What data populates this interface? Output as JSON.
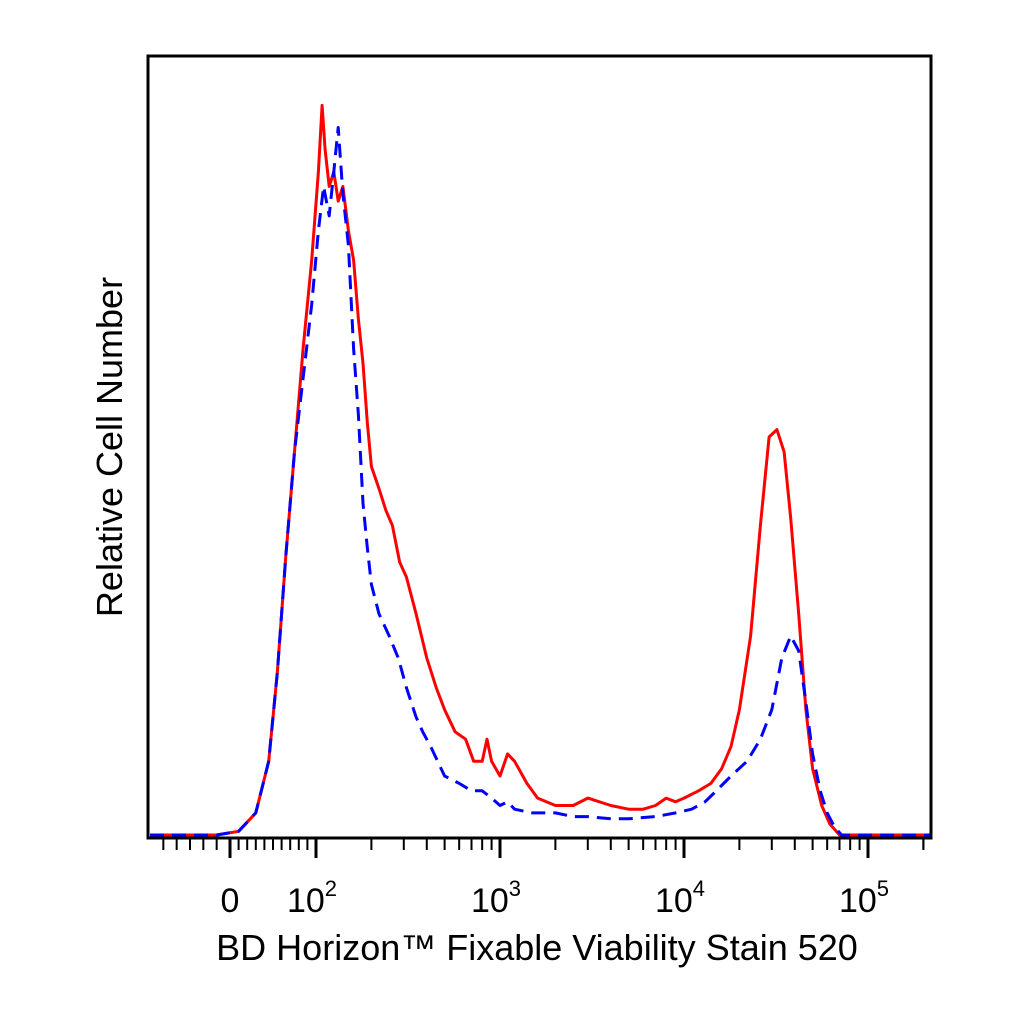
{
  "chart_data": {
    "type": "line",
    "xlabel": "BD Horizon™ Fixable Viability Stain 520",
    "ylabel": "Relative Cell Number",
    "x_scale": "biexponential",
    "xlim": [
      -60,
      250000
    ],
    "ylim": [
      0,
      1.0
    ],
    "grid": false,
    "legend": "none",
    "x_ticks": [
      {
        "value": 0,
        "base": "0",
        "exp": ""
      },
      {
        "value": 100,
        "base": "10",
        "exp": "2"
      },
      {
        "value": 1000,
        "base": "10",
        "exp": "3"
      },
      {
        "value": 10000,
        "base": "10",
        "exp": "4"
      },
      {
        "value": 100000,
        "base": "10",
        "exp": "5"
      }
    ],
    "series": [
      {
        "style": "solid",
        "color": "#ff0000",
        "points": [
          [
            -60,
            0.0
          ],
          [
            -10,
            0.0
          ],
          [
            10,
            0.005
          ],
          [
            30,
            0.03
          ],
          [
            45,
            0.1
          ],
          [
            55,
            0.22
          ],
          [
            65,
            0.38
          ],
          [
            75,
            0.52
          ],
          [
            85,
            0.66
          ],
          [
            95,
            0.78
          ],
          [
            103,
            0.9
          ],
          [
            108,
            0.99
          ],
          [
            112,
            0.93
          ],
          [
            118,
            0.88
          ],
          [
            125,
            0.9
          ],
          [
            132,
            0.86
          ],
          [
            140,
            0.88
          ],
          [
            150,
            0.82
          ],
          [
            160,
            0.78
          ],
          [
            170,
            0.7
          ],
          [
            180,
            0.64
          ],
          [
            190,
            0.56
          ],
          [
            200,
            0.5
          ],
          [
            220,
            0.47
          ],
          [
            240,
            0.44
          ],
          [
            260,
            0.42
          ],
          [
            285,
            0.37
          ],
          [
            310,
            0.35
          ],
          [
            350,
            0.3
          ],
          [
            400,
            0.24
          ],
          [
            450,
            0.2
          ],
          [
            500,
            0.17
          ],
          [
            570,
            0.14
          ],
          [
            650,
            0.13
          ],
          [
            720,
            0.1
          ],
          [
            800,
            0.1
          ],
          [
            850,
            0.13
          ],
          [
            900,
            0.1
          ],
          [
            1000,
            0.08
          ],
          [
            1100,
            0.11
          ],
          [
            1200,
            0.1
          ],
          [
            1400,
            0.07
          ],
          [
            1600,
            0.05
          ],
          [
            2000,
            0.04
          ],
          [
            2500,
            0.04
          ],
          [
            3000,
            0.05
          ],
          [
            4000,
            0.04
          ],
          [
            5000,
            0.035
          ],
          [
            6000,
            0.035
          ],
          [
            7000,
            0.04
          ],
          [
            8000,
            0.05
          ],
          [
            9000,
            0.045
          ],
          [
            10000,
            0.05
          ],
          [
            12000,
            0.06
          ],
          [
            14000,
            0.07
          ],
          [
            16000,
            0.09
          ],
          [
            18000,
            0.12
          ],
          [
            20000,
            0.17
          ],
          [
            23000,
            0.27
          ],
          [
            26000,
            0.42
          ],
          [
            29000,
            0.54
          ],
          [
            32000,
            0.55
          ],
          [
            35000,
            0.52
          ],
          [
            38000,
            0.43
          ],
          [
            42000,
            0.3
          ],
          [
            46000,
            0.17
          ],
          [
            50000,
            0.09
          ],
          [
            56000,
            0.04
          ],
          [
            62000,
            0.015
          ],
          [
            70000,
            0.0
          ],
          [
            250000,
            0.0
          ]
        ]
      },
      {
        "style": "dashed",
        "color": "#0000ff",
        "points": [
          [
            -60,
            0.0
          ],
          [
            -10,
            0.0
          ],
          [
            10,
            0.005
          ],
          [
            30,
            0.03
          ],
          [
            45,
            0.1
          ],
          [
            55,
            0.22
          ],
          [
            65,
            0.38
          ],
          [
            75,
            0.52
          ],
          [
            85,
            0.62
          ],
          [
            95,
            0.72
          ],
          [
            103,
            0.82
          ],
          [
            110,
            0.88
          ],
          [
            118,
            0.84
          ],
          [
            125,
            0.9
          ],
          [
            132,
            0.96
          ],
          [
            140,
            0.87
          ],
          [
            150,
            0.8
          ],
          [
            160,
            0.66
          ],
          [
            170,
            0.57
          ],
          [
            180,
            0.45
          ],
          [
            190,
            0.39
          ],
          [
            200,
            0.34
          ],
          [
            220,
            0.3
          ],
          [
            250,
            0.27
          ],
          [
            280,
            0.24
          ],
          [
            310,
            0.2
          ],
          [
            350,
            0.16
          ],
          [
            380,
            0.14
          ],
          [
            420,
            0.12
          ],
          [
            500,
            0.08
          ],
          [
            600,
            0.07
          ],
          [
            700,
            0.06
          ],
          [
            800,
            0.06
          ],
          [
            900,
            0.05
          ],
          [
            1000,
            0.04
          ],
          [
            1100,
            0.045
          ],
          [
            1200,
            0.035
          ],
          [
            1500,
            0.03
          ],
          [
            2000,
            0.03
          ],
          [
            2500,
            0.025
          ],
          [
            3000,
            0.025
          ],
          [
            4000,
            0.022
          ],
          [
            5000,
            0.022
          ],
          [
            7000,
            0.025
          ],
          [
            9000,
            0.03
          ],
          [
            11000,
            0.035
          ],
          [
            13000,
            0.045
          ],
          [
            15000,
            0.06
          ],
          [
            18000,
            0.08
          ],
          [
            22000,
            0.1
          ],
          [
            26000,
            0.13
          ],
          [
            30000,
            0.17
          ],
          [
            34000,
            0.24
          ],
          [
            38000,
            0.27
          ],
          [
            42000,
            0.25
          ],
          [
            46000,
            0.18
          ],
          [
            50000,
            0.11
          ],
          [
            55000,
            0.06
          ],
          [
            60000,
            0.03
          ],
          [
            66000,
            0.01
          ],
          [
            72000,
            0.0
          ],
          [
            250000,
            0.0
          ]
        ]
      }
    ]
  }
}
